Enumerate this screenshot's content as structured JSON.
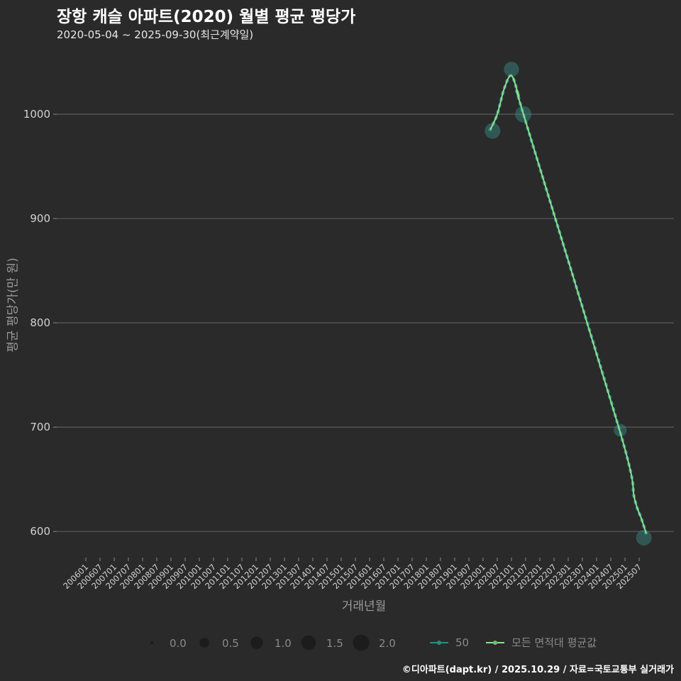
{
  "header": {
    "title": "장항 캐슬 아파트(2020) 월별 평균 평당가",
    "subtitle": "2020-05-04 ~ 2025-09-30(최근계약일)"
  },
  "footer": "©디아파트(dapt.kr) / 2025.10.29 / 자료=국토교통부 실거래가",
  "chart_data": {
    "type": "line",
    "title": "장항 캐슬 아파트(2020) 월별 평균 평당가",
    "subtitle": "2020-05-04 ~ 2025-09-30(최근계약일)",
    "xlabel": "거래년월",
    "ylabel": "평균 평당가(만 원)",
    "ylim": [
      570,
      1065
    ],
    "yticks": [
      600,
      700,
      800,
      900,
      1000
    ],
    "xticks": [
      "200601",
      "200607",
      "200701",
      "200707",
      "200801",
      "200807",
      "200901",
      "200907",
      "201001",
      "201007",
      "201101",
      "201107",
      "201201",
      "201207",
      "201301",
      "201307",
      "201401",
      "201407",
      "201501",
      "201507",
      "201601",
      "201607",
      "201701",
      "201707",
      "201801",
      "201807",
      "201901",
      "201907",
      "202001",
      "202007",
      "202101",
      "202107",
      "202201",
      "202207",
      "202301",
      "202307",
      "202401",
      "202407",
      "202501",
      "202507"
    ],
    "grid": true,
    "legend_position": "bottom",
    "series": [
      {
        "name": "50",
        "type": "scatter",
        "color": "#3a8f88",
        "points": [
          {
            "x": "202005",
            "y": 984,
            "size": 1.8
          },
          {
            "x": "202101",
            "y": 1043,
            "size": 1.65
          },
          {
            "x": "202106",
            "y": 1000,
            "size": 2.0
          },
          {
            "x": "202411",
            "y": 697,
            "size": 1.1
          },
          {
            "x": "202509",
            "y": 594,
            "size": 1.8
          }
        ]
      },
      {
        "name": "모든 면적대 평균값",
        "type": "line",
        "color": "#8fe08c",
        "points": [
          {
            "x": "202004",
            "y": 985
          },
          {
            "x": "202007",
            "y": 1000
          },
          {
            "x": "202010",
            "y": 1025
          },
          {
            "x": "202101",
            "y": 1037
          },
          {
            "x": "202104",
            "y": 1018
          },
          {
            "x": "202107",
            "y": 993
          },
          {
            "x": "202411",
            "y": 695
          },
          {
            "x": "202505",
            "y": 632
          },
          {
            "x": "202508",
            "y": 612
          },
          {
            "x": "202510",
            "y": 598
          }
        ]
      }
    ],
    "size_legend": {
      "values": [
        0.0,
        0.5,
        1.0,
        1.5,
        2.0
      ],
      "labels": [
        "0.0",
        "0.5",
        "1.0",
        "1.5",
        "2.0"
      ]
    },
    "line_legend": [
      {
        "label": "50",
        "color": "#2e8a84"
      },
      {
        "label": "모든 면적대 평균값",
        "color": "#8fe08c"
      }
    ]
  }
}
